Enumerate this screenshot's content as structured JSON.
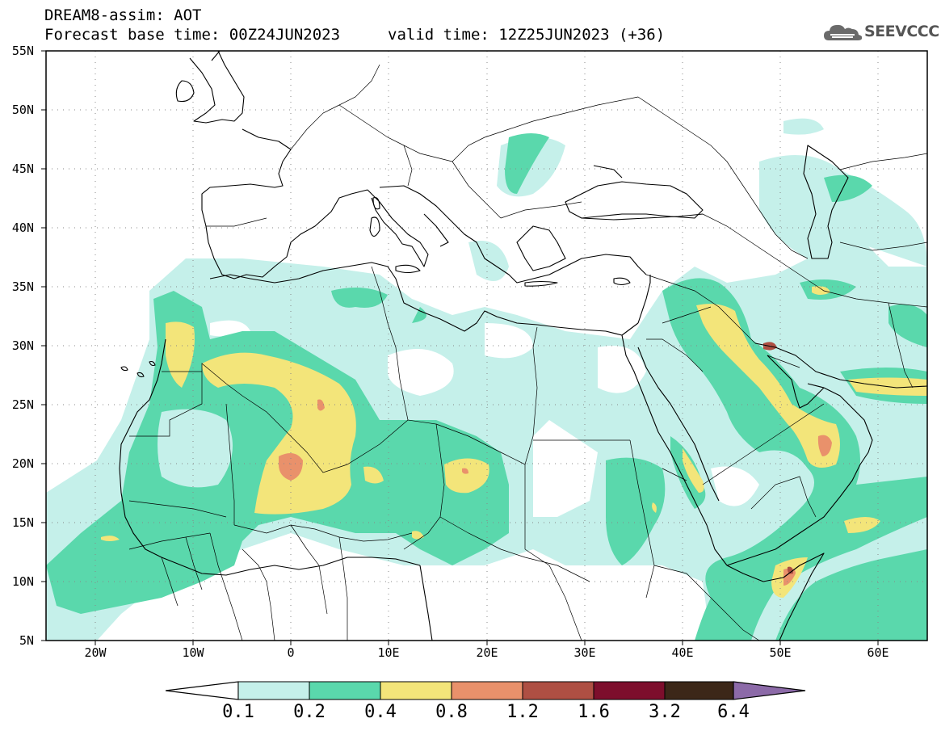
{
  "header": {
    "title": "DREAM8-assim: AOT",
    "base_time": "Forecast base time: 00Z24JUN2023",
    "valid_time": "valid time: 12Z25JUN2023 (+36)",
    "logo_text": "SEEVCCC"
  },
  "map": {
    "projection": "lat-lon",
    "lon_range": [
      -25,
      65
    ],
    "lat_range": [
      5,
      55
    ],
    "lat_labels": [
      "55N",
      "50N",
      "45N",
      "40N",
      "35N",
      "30N",
      "25N",
      "20N",
      "15N",
      "10N",
      "5N"
    ],
    "lat_values": [
      55,
      50,
      45,
      40,
      35,
      30,
      25,
      20,
      15,
      10,
      5
    ],
    "lon_labels": [
      "20W",
      "10W",
      "0",
      "10E",
      "20E",
      "30E",
      "40E",
      "50E",
      "60E"
    ],
    "lon_values": [
      -20,
      -10,
      0,
      10,
      20,
      30,
      40,
      50,
      60
    ],
    "grid": "dotted"
  },
  "legend": {
    "levels": [
      "0.1",
      "0.2",
      "0.4",
      "0.8",
      "1.2",
      "1.6",
      "3.2",
      "6.4"
    ],
    "colors": [
      "#c5f0ea",
      "#5ad8ac",
      "#f3e57a",
      "#e9916b",
      "#ae4f43",
      "#7d0e2c",
      "#3c2718",
      "#8c6aa8"
    ]
  },
  "colors": {
    "c01": "#c5f0ea",
    "c02": "#5ad8ac",
    "c04": "#f3e57a",
    "c08": "#e9916b",
    "c12": "#ae4f43"
  }
}
